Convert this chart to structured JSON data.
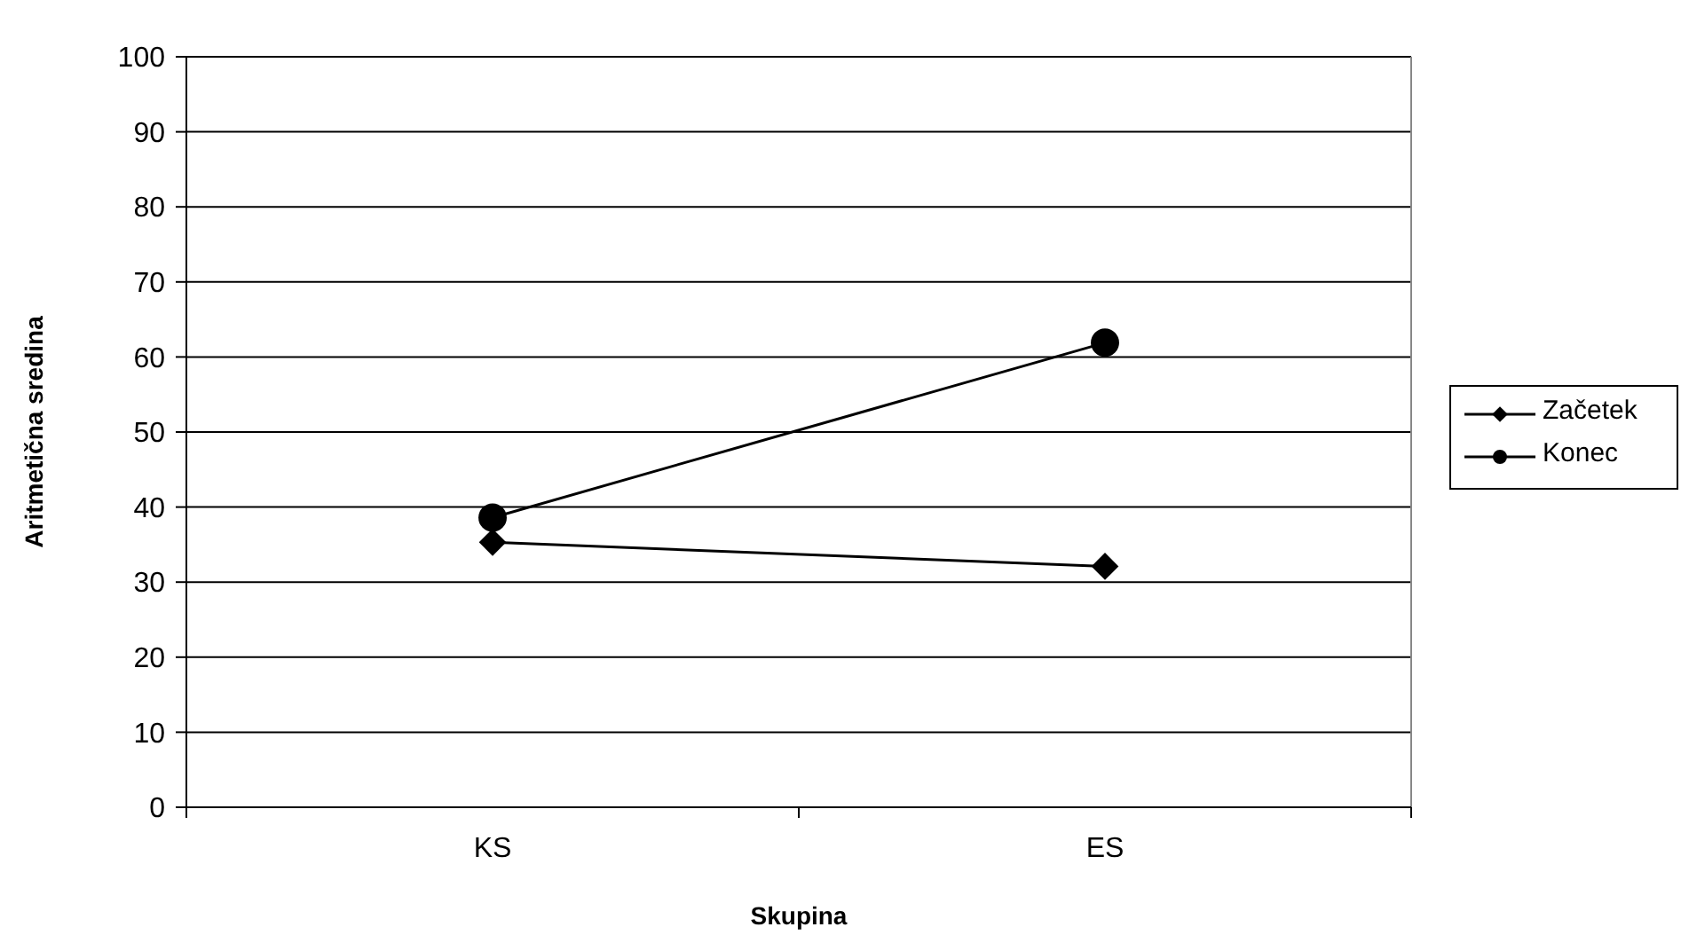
{
  "chart_data": {
    "type": "line",
    "xlabel": "Skupina",
    "ylabel": "Aritmetična sredina",
    "categories": [
      "KS",
      "ES"
    ],
    "series": [
      {
        "name": "Začetek",
        "color": "#000000",
        "values": [
          35.3,
          32.1
        ],
        "marker": "diamond"
      },
      {
        "name": "Konec",
        "color": "#000000",
        "values": [
          38.6,
          61.9
        ],
        "marker": "circle"
      }
    ],
    "ylim": [
      0,
      100
    ],
    "yticks": [
      0,
      10,
      20,
      30,
      40,
      50,
      60,
      70,
      80,
      90,
      100
    ],
    "grid": "y",
    "legend": "right",
    "line_style": "solid"
  }
}
